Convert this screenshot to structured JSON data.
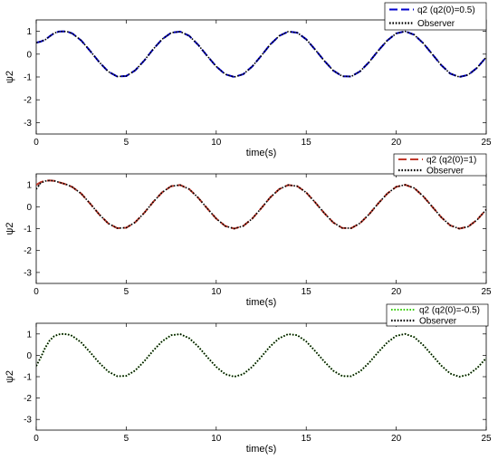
{
  "chart_data": [
    {
      "type": "line",
      "xlabel": "time(s)",
      "ylabel": "ψ2",
      "xlim": [
        0,
        25
      ],
      "ylim": [
        -3.5,
        1.5
      ],
      "xticks": [
        0,
        5,
        10,
        15,
        20,
        25
      ],
      "yticks": [
        1,
        0,
        -1,
        -2,
        -3
      ],
      "grid": false,
      "legend_position": "top-right",
      "series": [
        {
          "name": "q2 (q2(0)=0.5)",
          "color": "#0000cc",
          "dash": "dashed",
          "x": [
            0,
            0.25,
            0.5,
            0.75,
            1.0,
            1.25,
            1.5,
            1.75,
            2.0,
            2.5,
            3.0,
            3.5,
            4.0,
            4.5,
            5.0,
            5.5,
            6.0,
            6.5,
            7.0,
            7.5,
            8.0,
            8.5,
            9.0,
            9.5,
            10.0,
            10.5,
            11.0,
            11.5,
            12.0,
            12.5,
            13.0,
            13.5,
            14.0,
            14.5,
            15.0,
            15.5,
            16.0,
            16.5,
            17.0,
            17.5,
            18.0,
            18.5,
            19.0,
            19.5,
            20.0,
            20.5,
            21.0,
            21.5,
            22.0,
            22.5,
            23.0,
            23.5,
            24.0,
            24.5,
            25.0
          ],
          "y": [
            0.5,
            0.55,
            0.63,
            0.78,
            0.92,
            0.99,
            1.0,
            0.98,
            0.91,
            0.6,
            0.14,
            -0.35,
            -0.76,
            -0.98,
            -0.96,
            -0.71,
            -0.28,
            0.22,
            0.66,
            0.94,
            0.99,
            0.8,
            0.41,
            -0.08,
            -0.54,
            -0.88,
            -1.0,
            -0.88,
            -0.54,
            -0.07,
            0.42,
            0.8,
            0.99,
            0.94,
            0.65,
            0.2,
            -0.29,
            -0.72,
            -0.97,
            -0.98,
            -0.75,
            -0.34,
            0.15,
            0.6,
            0.91,
            1.0,
            0.85,
            0.48,
            0.0,
            -0.48,
            -0.85,
            -1.0,
            -0.91,
            -0.59,
            -0.13
          ]
        },
        {
          "name": "Observer",
          "color": "#000000",
          "dash": "dotted",
          "x": [
            0,
            0.25,
            0.5,
            0.75,
            1.0,
            1.25,
            1.5,
            1.75,
            2.0,
            2.5,
            3.0,
            3.5,
            4.0,
            4.5,
            5.0,
            5.5,
            6.0,
            6.5,
            7.0,
            7.5,
            8.0,
            8.5,
            9.0,
            9.5,
            10.0,
            10.5,
            11.0,
            11.5,
            12.0,
            12.5,
            13.0,
            13.5,
            14.0,
            14.5,
            15.0,
            15.5,
            16.0,
            16.5,
            17.0,
            17.5,
            18.0,
            18.5,
            19.0,
            19.5,
            20.0,
            20.5,
            21.0,
            21.5,
            22.0,
            22.5,
            23.0,
            23.5,
            24.0,
            24.5,
            25.0
          ],
          "y": [
            0.5,
            0.55,
            0.63,
            0.78,
            0.92,
            0.99,
            1.0,
            0.98,
            0.91,
            0.6,
            0.14,
            -0.35,
            -0.76,
            -0.98,
            -0.96,
            -0.71,
            -0.28,
            0.22,
            0.66,
            0.94,
            0.99,
            0.8,
            0.41,
            -0.08,
            -0.54,
            -0.88,
            -1.0,
            -0.88,
            -0.54,
            -0.07,
            0.42,
            0.8,
            0.99,
            0.94,
            0.65,
            0.2,
            -0.29,
            -0.72,
            -0.97,
            -0.98,
            -0.75,
            -0.34,
            0.15,
            0.6,
            0.91,
            1.0,
            0.85,
            0.48,
            0.0,
            -0.48,
            -0.85,
            -1.0,
            -0.91,
            -0.59,
            -0.13
          ]
        }
      ]
    },
    {
      "type": "line",
      "xlabel": "time(s)",
      "ylabel": "ψ2",
      "xlim": [
        0,
        25
      ],
      "ylim": [
        -3.5,
        1.5
      ],
      "xticks": [
        0,
        5,
        10,
        15,
        20,
        25
      ],
      "yticks": [
        1,
        0,
        -1,
        -2,
        -3
      ],
      "grid": false,
      "legend_position": "top-right",
      "series": [
        {
          "name": "q2 (q2(0)=1)",
          "color": "#c0392b",
          "dash": "dashed",
          "x": [
            0,
            0.25,
            0.5,
            0.75,
            1.0,
            1.25,
            1.5,
            1.75,
            2.0,
            2.5,
            3.0,
            3.5,
            4.0,
            4.5,
            5.0,
            5.5,
            6.0,
            6.5,
            7.0,
            7.5,
            8.0,
            8.5,
            9.0,
            9.5,
            10.0,
            10.5,
            11.0,
            11.5,
            12.0,
            12.5,
            13.0,
            13.5,
            14.0,
            14.5,
            15.0,
            15.5,
            16.0,
            16.5,
            17.0,
            17.5,
            18.0,
            18.5,
            19.0,
            19.5,
            20.0,
            20.5,
            21.0,
            21.5,
            22.0,
            22.5,
            23.0,
            23.5,
            24.0,
            24.5,
            25.0
          ],
          "y": [
            1.0,
            1.12,
            1.18,
            1.2,
            1.18,
            1.12,
            1.06,
            0.99,
            0.9,
            0.6,
            0.14,
            -0.35,
            -0.76,
            -0.98,
            -0.96,
            -0.71,
            -0.28,
            0.22,
            0.66,
            0.94,
            0.99,
            0.8,
            0.41,
            -0.08,
            -0.54,
            -0.88,
            -1.0,
            -0.88,
            -0.54,
            -0.07,
            0.42,
            0.8,
            0.99,
            0.94,
            0.65,
            0.2,
            -0.29,
            -0.72,
            -0.97,
            -0.98,
            -0.75,
            -0.34,
            0.15,
            0.6,
            0.91,
            1.0,
            0.85,
            0.48,
            0.0,
            -0.48,
            -0.85,
            -1.0,
            -0.91,
            -0.59,
            -0.13
          ]
        },
        {
          "name": "Observer",
          "color": "#000000",
          "dash": "dotted",
          "x": [
            0,
            0.25,
            0.5,
            0.75,
            1.0,
            1.25,
            1.5,
            1.75,
            2.0,
            2.5,
            3.0,
            3.5,
            4.0,
            4.5,
            5.0,
            5.5,
            6.0,
            6.5,
            7.0,
            7.5,
            8.0,
            8.5,
            9.0,
            9.5,
            10.0,
            10.5,
            11.0,
            11.5,
            12.0,
            12.5,
            13.0,
            13.5,
            14.0,
            14.5,
            15.0,
            15.5,
            16.0,
            16.5,
            17.0,
            17.5,
            18.0,
            18.5,
            19.0,
            19.5,
            20.0,
            20.5,
            21.0,
            21.5,
            22.0,
            22.5,
            23.0,
            23.5,
            24.0,
            24.5,
            25.0
          ],
          "y": [
            0.8,
            1.08,
            1.17,
            1.2,
            1.18,
            1.12,
            1.06,
            0.99,
            0.9,
            0.6,
            0.14,
            -0.35,
            -0.76,
            -0.98,
            -0.96,
            -0.71,
            -0.28,
            0.22,
            0.66,
            0.94,
            0.99,
            0.8,
            0.41,
            -0.08,
            -0.54,
            -0.88,
            -1.0,
            -0.88,
            -0.54,
            -0.07,
            0.42,
            0.8,
            0.99,
            0.94,
            0.65,
            0.2,
            -0.29,
            -0.72,
            -0.97,
            -0.98,
            -0.75,
            -0.34,
            0.15,
            0.6,
            0.91,
            1.0,
            0.85,
            0.48,
            0.0,
            -0.48,
            -0.85,
            -1.0,
            -0.91,
            -0.59,
            -0.13
          ]
        }
      ]
    },
    {
      "type": "line",
      "xlabel": "time(s)",
      "ylabel": "ψ2",
      "xlim": [
        0,
        25
      ],
      "ylim": [
        -3.5,
        1.5
      ],
      "xticks": [
        0,
        5,
        10,
        15,
        20,
        25
      ],
      "yticks": [
        1,
        0,
        -1,
        -2,
        -3
      ],
      "grid": false,
      "legend_position": "top-right",
      "series": [
        {
          "name": "q2 (q2(0)=-0.5)",
          "color": "#33cc00",
          "dash": "dotted",
          "x": [
            0,
            0.25,
            0.5,
            0.75,
            1.0,
            1.25,
            1.5,
            1.75,
            2.0,
            2.5,
            3.0,
            3.5,
            4.0,
            4.5,
            5.0,
            5.5,
            6.0,
            6.5,
            7.0,
            7.5,
            8.0,
            8.5,
            9.0,
            9.5,
            10.0,
            10.5,
            11.0,
            11.5,
            12.0,
            12.5,
            13.0,
            13.5,
            14.0,
            14.5,
            15.0,
            15.5,
            16.0,
            16.5,
            17.0,
            17.5,
            18.0,
            18.5,
            19.0,
            19.5,
            20.0,
            20.5,
            21.0,
            21.5,
            22.0,
            22.5,
            23.0,
            23.5,
            24.0,
            24.5,
            25.0
          ],
          "y": [
            -0.5,
            -0.1,
            0.35,
            0.7,
            0.9,
            0.98,
            1.0,
            0.98,
            0.91,
            0.6,
            0.14,
            -0.35,
            -0.76,
            -0.98,
            -0.96,
            -0.71,
            -0.28,
            0.22,
            0.66,
            0.94,
            0.99,
            0.8,
            0.41,
            -0.08,
            -0.54,
            -0.88,
            -1.0,
            -0.88,
            -0.54,
            -0.07,
            0.42,
            0.8,
            0.99,
            0.94,
            0.65,
            0.2,
            -0.29,
            -0.72,
            -0.97,
            -0.98,
            -0.75,
            -0.34,
            0.15,
            0.6,
            0.91,
            1.0,
            0.85,
            0.48,
            0.0,
            -0.48,
            -0.85,
            -1.0,
            -0.91,
            -0.59,
            -0.13
          ]
        },
        {
          "name": "Observer",
          "color": "#000000",
          "dash": "dotted",
          "x": [
            0,
            0.25,
            0.5,
            0.75,
            1.0,
            1.25,
            1.5,
            1.75,
            2.0,
            2.5,
            3.0,
            3.5,
            4.0,
            4.5,
            5.0,
            5.5,
            6.0,
            6.5,
            7.0,
            7.5,
            8.0,
            8.5,
            9.0,
            9.5,
            10.0,
            10.5,
            11.0,
            11.5,
            12.0,
            12.5,
            13.0,
            13.5,
            14.0,
            14.5,
            15.0,
            15.5,
            16.0,
            16.5,
            17.0,
            17.5,
            18.0,
            18.5,
            19.0,
            19.5,
            20.0,
            20.5,
            21.0,
            21.5,
            22.0,
            22.5,
            23.0,
            23.5,
            24.0,
            24.5,
            25.0
          ],
          "y": [
            -0.5,
            -0.1,
            0.35,
            0.7,
            0.9,
            0.98,
            1.0,
            0.98,
            0.91,
            0.6,
            0.14,
            -0.35,
            -0.76,
            -0.98,
            -0.96,
            -0.71,
            -0.28,
            0.22,
            0.66,
            0.94,
            0.99,
            0.8,
            0.41,
            -0.08,
            -0.54,
            -0.88,
            -1.0,
            -0.88,
            -0.54,
            -0.07,
            0.42,
            0.8,
            0.99,
            0.94,
            0.65,
            0.2,
            -0.29,
            -0.72,
            -0.97,
            -0.98,
            -0.75,
            -0.34,
            0.15,
            0.6,
            0.91,
            1.0,
            0.85,
            0.48,
            0.0,
            -0.48,
            -0.85,
            -1.0,
            -0.91,
            -0.59,
            -0.13
          ]
        }
      ]
    }
  ]
}
